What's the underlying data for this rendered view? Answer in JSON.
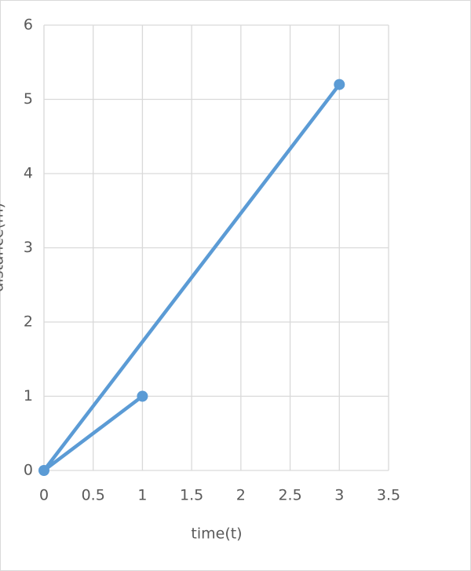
{
  "chart_data": {
    "type": "scatter",
    "x_label": "time(t)",
    "y_label": "distance(m)",
    "series": [
      {
        "color": "#5b9bd5",
        "x": [
          1,
          0,
          3
        ],
        "values": [
          1,
          0,
          5.2
        ]
      }
    ],
    "xlim": [
      0,
      3.5
    ],
    "xticks": [
      0,
      0.5,
      1,
      1.5,
      2,
      2.5,
      3,
      3.5
    ],
    "ylim": [
      0,
      6
    ],
    "yticks": [
      0,
      1,
      2,
      3,
      4,
      5,
      6
    ],
    "grid": true
  }
}
